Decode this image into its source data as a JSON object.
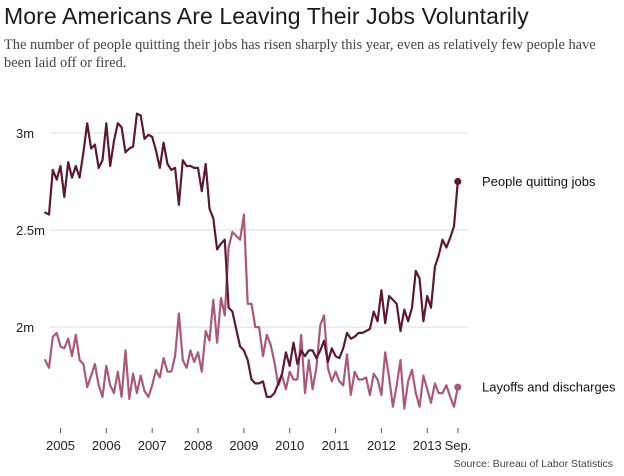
{
  "title": "More Americans Are Leaving Their Jobs Voluntarily",
  "subtitle": "The number of people quitting their jobs has risen sharply this year, even as relatively few people have been laid off or fired.",
  "source": "Source: Bureau of Labor Statistics",
  "colors": {
    "quits": "#5b1a33",
    "layoffs": "#a85b79",
    "grid": "#dddddd"
  },
  "chart_data": {
    "type": "line",
    "title": "More Americans Are Leaving Their Jobs Voluntarily",
    "xlabel": "",
    "ylabel": "",
    "ylim": [
      1.48,
      3.17
    ],
    "xlim": [
      2004.64,
      2014.02
    ],
    "yticks": [
      {
        "value": 3.0,
        "label": "3m"
      },
      {
        "value": 2.5,
        "label": "2.5m"
      },
      {
        "value": 2.0,
        "label": "2m"
      }
    ],
    "xticks": [
      {
        "value": 2005.0,
        "label": "2005"
      },
      {
        "value": 2006.0,
        "label": "2006"
      },
      {
        "value": 2007.0,
        "label": "2007"
      },
      {
        "value": 2008.0,
        "label": "2008"
      },
      {
        "value": 2009.0,
        "label": "2009"
      },
      {
        "value": 2010.0,
        "label": "2010"
      },
      {
        "value": 2011.0,
        "label": "2011"
      },
      {
        "value": 2012.0,
        "label": "2012"
      },
      {
        "value": 2013.0,
        "label": "2013"
      },
      {
        "value": 2013.67,
        "label": "Sep."
      }
    ],
    "grid": true,
    "legend": "direct labels at right end of lines",
    "series": [
      {
        "name": "People quitting jobs",
        "x": [
          2004.667,
          2004.75,
          2004.833,
          2004.917,
          2005.0,
          2005.083,
          2005.167,
          2005.25,
          2005.333,
          2005.417,
          2005.5,
          2005.583,
          2005.667,
          2005.75,
          2005.833,
          2005.917,
          2006.0,
          2006.083,
          2006.167,
          2006.25,
          2006.333,
          2006.417,
          2006.5,
          2006.583,
          2006.667,
          2006.75,
          2006.833,
          2006.917,
          2007.0,
          2007.083,
          2007.167,
          2007.25,
          2007.333,
          2007.417,
          2007.5,
          2007.583,
          2007.667,
          2007.75,
          2007.833,
          2007.917,
          2008.0,
          2008.083,
          2008.167,
          2008.25,
          2008.333,
          2008.417,
          2008.5,
          2008.583,
          2008.667,
          2008.75,
          2008.833,
          2008.917,
          2009.0,
          2009.083,
          2009.167,
          2009.25,
          2009.333,
          2009.417,
          2009.5,
          2009.583,
          2009.667,
          2009.75,
          2009.833,
          2009.917,
          2010.0,
          2010.083,
          2010.167,
          2010.25,
          2010.333,
          2010.417,
          2010.5,
          2010.583,
          2010.667,
          2010.75,
          2010.833,
          2010.917,
          2011.0,
          2011.083,
          2011.167,
          2011.25,
          2011.333,
          2011.417,
          2011.5,
          2011.583,
          2011.667,
          2011.75,
          2011.833,
          2011.917,
          2012.0,
          2012.083,
          2012.167,
          2012.25,
          2012.333,
          2012.417,
          2012.5,
          2012.583,
          2012.667,
          2012.75,
          2012.833,
          2012.917,
          2013.0,
          2013.083,
          2013.167,
          2013.25,
          2013.333,
          2013.417,
          2013.5,
          2013.583,
          2013.667
        ],
        "values": [
          2.59,
          2.58,
          2.81,
          2.76,
          2.83,
          2.67,
          2.85,
          2.77,
          2.83,
          2.77,
          2.9,
          3.05,
          2.92,
          2.94,
          2.82,
          2.86,
          3.05,
          2.83,
          2.96,
          3.05,
          3.03,
          2.9,
          2.92,
          2.93,
          3.1,
          3.09,
          2.97,
          2.99,
          2.98,
          2.91,
          2.82,
          2.95,
          2.84,
          2.81,
          2.82,
          2.63,
          2.86,
          2.83,
          2.83,
          2.82,
          2.82,
          2.7,
          2.84,
          2.61,
          2.56,
          2.4,
          2.43,
          2.45,
          2.1,
          2.08,
          1.99,
          1.9,
          1.88,
          1.83,
          1.73,
          1.71,
          1.71,
          1.72,
          1.64,
          1.64,
          1.66,
          1.71,
          1.76,
          1.87,
          1.8,
          1.92,
          1.81,
          1.88,
          1.85,
          1.88,
          1.88,
          1.84,
          1.88,
          1.93,
          1.82,
          1.89,
          1.85,
          1.84,
          1.89,
          1.97,
          1.94,
          1.95,
          1.97,
          1.97,
          1.98,
          1.99,
          2.08,
          2.03,
          2.19,
          2.02,
          2.16,
          2.14,
          2.12,
          1.98,
          2.09,
          2.03,
          2.1,
          2.29,
          2.25,
          2.03,
          2.16,
          2.1,
          2.31,
          2.37,
          2.45,
          2.41,
          2.46,
          2.52,
          2.75
        ]
      },
      {
        "name": "Layoffs and discharges",
        "x": [
          2004.667,
          2004.75,
          2004.833,
          2004.917,
          2005.0,
          2005.083,
          2005.167,
          2005.25,
          2005.333,
          2005.417,
          2005.5,
          2005.583,
          2005.667,
          2005.75,
          2005.833,
          2005.917,
          2006.0,
          2006.083,
          2006.167,
          2006.25,
          2006.333,
          2006.417,
          2006.5,
          2006.583,
          2006.667,
          2006.75,
          2006.833,
          2006.917,
          2007.0,
          2007.083,
          2007.167,
          2007.25,
          2007.333,
          2007.417,
          2007.5,
          2007.583,
          2007.667,
          2007.75,
          2007.833,
          2007.917,
          2008.0,
          2008.083,
          2008.167,
          2008.25,
          2008.333,
          2008.417,
          2008.5,
          2008.583,
          2008.667,
          2008.75,
          2008.833,
          2008.917,
          2009.0,
          2009.083,
          2009.167,
          2009.25,
          2009.333,
          2009.417,
          2009.5,
          2009.583,
          2009.667,
          2009.75,
          2009.833,
          2009.917,
          2010.0,
          2010.083,
          2010.167,
          2010.25,
          2010.333,
          2010.417,
          2010.5,
          2010.583,
          2010.667,
          2010.75,
          2010.833,
          2010.917,
          2011.0,
          2011.083,
          2011.167,
          2011.25,
          2011.333,
          2011.417,
          2011.5,
          2011.583,
          2011.667,
          2011.75,
          2011.833,
          2011.917,
          2012.0,
          2012.083,
          2012.167,
          2012.25,
          2012.333,
          2012.417,
          2012.5,
          2012.583,
          2012.667,
          2012.75,
          2012.833,
          2012.917,
          2013.0,
          2013.083,
          2013.167,
          2013.25,
          2013.333,
          2013.417,
          2013.5,
          2013.583,
          2013.667
        ],
        "values": [
          1.83,
          1.79,
          1.95,
          1.97,
          1.9,
          1.89,
          1.94,
          1.85,
          1.96,
          1.83,
          1.81,
          1.69,
          1.75,
          1.81,
          1.7,
          1.64,
          1.8,
          1.7,
          1.66,
          1.77,
          1.64,
          1.88,
          1.63,
          1.76,
          1.66,
          1.75,
          1.67,
          1.64,
          1.7,
          1.78,
          1.74,
          1.84,
          1.77,
          1.77,
          1.85,
          2.07,
          1.83,
          1.79,
          1.88,
          1.82,
          1.87,
          1.77,
          1.98,
          1.93,
          2.14,
          1.92,
          2.15,
          2.06,
          2.41,
          2.49,
          2.47,
          2.45,
          2.58,
          2.12,
          2.12,
          2.0,
          2.0,
          1.85,
          1.96,
          1.91,
          1.82,
          1.7,
          1.75,
          1.68,
          1.77,
          1.73,
          1.73,
          1.96,
          1.66,
          1.83,
          1.68,
          1.79,
          2.01,
          2.06,
          1.79,
          1.72,
          1.77,
          1.72,
          1.7,
          1.86,
          1.65,
          1.77,
          1.73,
          1.73,
          1.74,
          1.65,
          1.76,
          1.73,
          1.65,
          1.87,
          1.74,
          1.59,
          1.7,
          1.83,
          1.58,
          1.72,
          1.78,
          1.66,
          1.59,
          1.75,
          1.68,
          1.61,
          1.71,
          1.66,
          1.66,
          1.7,
          1.64,
          1.59,
          1.69
        ]
      }
    ]
  }
}
